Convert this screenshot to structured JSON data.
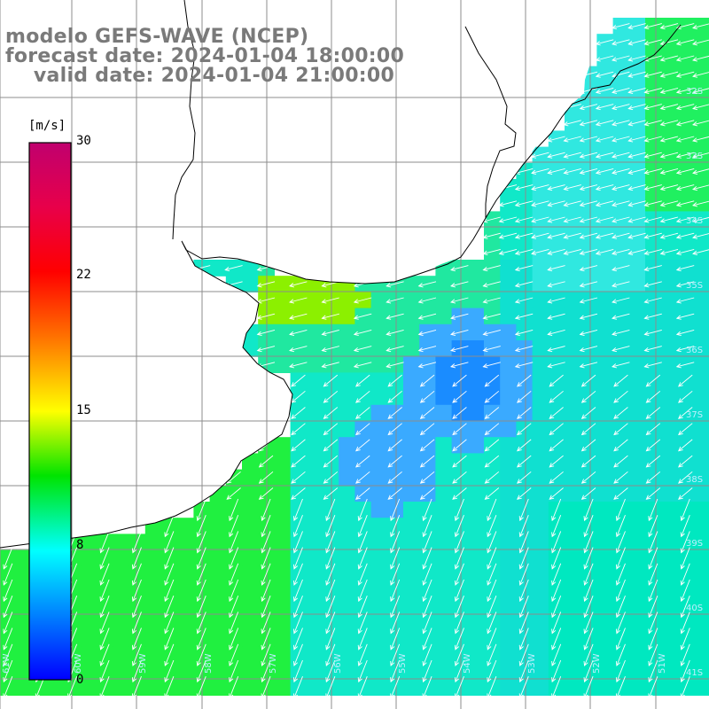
{
  "title": {
    "line1": "modelo GEFS-WAVE (NCEP)",
    "line2": "forecast date: 2024-01-04 18:00:00",
    "line3": "    valid date: 2024-01-04 21:00:00"
  },
  "colorbar": {
    "unit": "[m/s]",
    "ticks": [
      "30",
      "22",
      "15",
      "8",
      "0"
    ],
    "colors": [
      "#c0006e",
      "#ff0000",
      "#ff7000",
      "#ffff00",
      "#00e400",
      "#00ffff",
      "#0080ff",
      "#0000ff"
    ]
  },
  "lat_labels": [
    "32S",
    "33S",
    "34S",
    "35S",
    "36S",
    "37S",
    "38S",
    "39S",
    "40S",
    "41S"
  ],
  "lon_labels": [
    "61W",
    "60W",
    "59W",
    "58W",
    "57W",
    "56W",
    "55W",
    "54W",
    "53W",
    "52W",
    "51W"
  ],
  "colors": {
    "grid": "#8c8c8c",
    "land": "#ffffff",
    "coast": "#000000",
    "arrow": "#ffffff",
    "title": "#7a7a7a"
  }
}
